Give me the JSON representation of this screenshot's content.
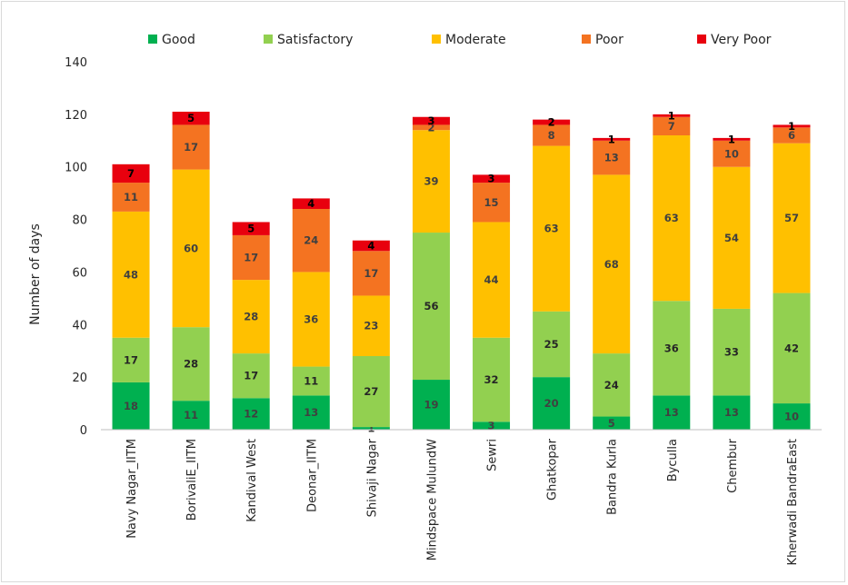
{
  "chart_data": {
    "type": "bar",
    "stacked": true,
    "categories": [
      "Navy Nagar_IITM",
      "BorivaliE_IITM",
      "Kandival West",
      "Deonar_IITM",
      "Shivaji Nagar",
      "Mindspace MulundW",
      "Sewri",
      "Ghatkopar",
      "Bandra Kurla",
      "Byculla",
      "Chembur",
      "Kherwadi BandraEast"
    ],
    "series": [
      {
        "name": "Good",
        "color": "#00b050",
        "label_color": "#404040",
        "values": [
          18,
          11,
          12,
          13,
          1,
          19,
          3,
          20,
          5,
          13,
          13,
          10
        ]
      },
      {
        "name": "Satisfactory",
        "color": "#92d050",
        "label_color": "#262626",
        "values": [
          17,
          28,
          17,
          11,
          27,
          56,
          32,
          25,
          24,
          36,
          33,
          42
        ]
      },
      {
        "name": "Moderate",
        "color": "#ffc000",
        "label_color": "#404040",
        "values": [
          48,
          60,
          28,
          36,
          23,
          39,
          44,
          63,
          68,
          63,
          54,
          57
        ]
      },
      {
        "name": "Poor",
        "color": "#f47321",
        "label_color": "#404040",
        "values": [
          11,
          17,
          17,
          24,
          17,
          2,
          15,
          8,
          13,
          7,
          10,
          6
        ]
      },
      {
        "name": "Very Poor",
        "color": "#e8000e",
        "label_color": "#000000",
        "values": [
          7,
          5,
          5,
          4,
          4,
          3,
          3,
          2,
          1,
          1,
          1,
          1
        ]
      }
    ],
    "ylabel": "Number of days",
    "xlabel": "",
    "ylim": [
      0,
      140
    ],
    "yticks": [
      0,
      20,
      40,
      60,
      80,
      100,
      120,
      140
    ],
    "grid": false,
    "legend_position": "top"
  }
}
